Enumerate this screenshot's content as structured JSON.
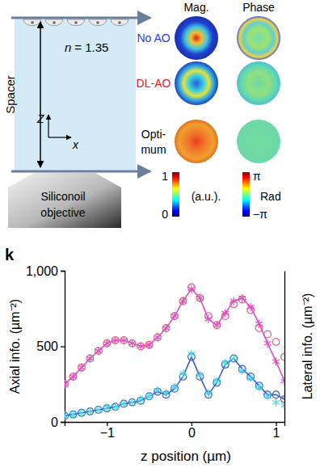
{
  "diagram": {
    "panel_label": "k",
    "spacer": {
      "label": "Spacer",
      "n_symbol": "n",
      "n_value": "= 1.35",
      "z_label": "Z",
      "x_label": "x"
    },
    "objective": {
      "lines": [
        "Siliconoil",
        "objective"
      ]
    },
    "pupils": {
      "columns": [
        "Mag.",
        "Phase"
      ],
      "rows": [
        {
          "lines": [
            "No AO"
          ],
          "color": "#1f3fd0"
        },
        {
          "lines": [
            "DL-AO"
          ],
          "color": "#e02020"
        },
        {
          "lines": [
            "Opti-",
            "mum"
          ],
          "color": "#000000"
        }
      ]
    },
    "colorbars": [
      {
        "top": "1",
        "bottom": "0",
        "unit": "(a.u.)."
      },
      {
        "top": "π",
        "bottom": "−π",
        "unit": "Rad"
      }
    ]
  },
  "chart_data": {
    "type": "line",
    "xlabel": "z position (µm)",
    "ylabel": "Axial info. (µm⁻²)",
    "y2label": "Lateral info. (µm⁻²)",
    "x": [
      -1.5,
      -1.4,
      -1.3,
      -1.2,
      -1.1,
      -1.0,
      -0.9,
      -0.8,
      -0.7,
      -0.6,
      -0.5,
      -0.4,
      -0.3,
      -0.2,
      -0.1,
      0,
      0.1,
      0.2,
      0.3,
      0.4,
      0.5,
      0.6,
      0.7,
      0.8,
      0.9,
      1.0,
      1.1
    ],
    "xlim": [
      -1.5,
      1.1
    ],
    "xticks": [
      {
        "value": -1,
        "label": "−1"
      },
      0,
      1
    ],
    "ylim": [
      0,
      1000
    ],
    "yticks": [
      0,
      500,
      {
        "value": 1000,
        "label": "1,000"
      }
    ],
    "y2lim": [
      0,
      1000
    ],
    "series": [
      {
        "color": "#e448d4",
        "marker": "asterisk",
        "line_style": "solid",
        "values": [
          250,
          300,
          360,
          420,
          470,
          520,
          540,
          540,
          520,
          500,
          510,
          560,
          620,
          700,
          800,
          880,
          820,
          680,
          640,
          720,
          800,
          820,
          760,
          650,
          520,
          400,
          270
        ]
      },
      {
        "color": "#e0607a",
        "marker": "circle",
        "line_style": "none",
        "values": [
          250,
          300,
          360,
          420,
          470,
          520,
          540,
          540,
          520,
          500,
          510,
          560,
          620,
          700,
          800,
          890,
          820,
          700,
          640,
          700,
          780,
          810,
          740,
          620,
          580,
          530,
          430
        ]
      },
      {
        "color": "#3a5fcd",
        "marker": "circle",
        "line_style": "solid",
        "axis": "y2",
        "values": [
          40,
          50,
          60,
          70,
          80,
          90,
          100,
          120,
          130,
          140,
          170,
          200,
          180,
          220,
          300,
          430,
          300,
          180,
          260,
          380,
          420,
          350,
          300,
          240,
          180,
          180,
          150
        ]
      },
      {
        "color": "#3fdfe8",
        "marker": "asterisk",
        "line_style": "none",
        "axis": "y2",
        "values": [
          40,
          50,
          60,
          70,
          80,
          95,
          100,
          120,
          130,
          150,
          170,
          210,
          190,
          230,
          320,
          450,
          310,
          190,
          270,
          390,
          420,
          340,
          290,
          230,
          170,
          130,
          110
        ]
      }
    ]
  }
}
